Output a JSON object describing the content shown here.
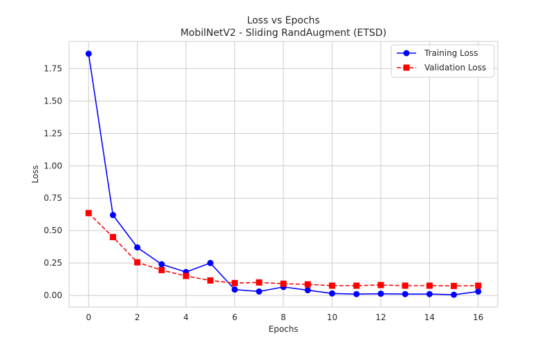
{
  "colors": {
    "training": "#0000ff",
    "validation": "#ff0000",
    "grid": "#cccccc",
    "axes": "#cccccc",
    "background": "#ffffff"
  },
  "legend": {
    "training_label": "Training Loss",
    "validation_label": "Validation Loss"
  },
  "chart_data": {
    "type": "line",
    "title": "Loss vs Epochs",
    "subtitle": "MobilNetV2 - Sliding RandAugment (ETSD)",
    "xlabel": "Epochs",
    "ylabel": "Loss",
    "xlim": [
      -0.8,
      16.8
    ],
    "ylim": [
      -0.09,
      1.96
    ],
    "xticks": [
      0,
      2,
      4,
      6,
      8,
      10,
      12,
      14,
      16
    ],
    "xtick_labels": [
      "0",
      "2",
      "4",
      "6",
      "8",
      "10",
      "12",
      "14",
      "16"
    ],
    "yticks": [
      0.0,
      0.25,
      0.5,
      0.75,
      1.0,
      1.25,
      1.5,
      1.75
    ],
    "ytick_labels": [
      "0.00",
      "0.25",
      "0.50",
      "0.75",
      "1.00",
      "1.25",
      "1.50",
      "1.75"
    ],
    "grid": true,
    "legend_position": "top-right",
    "x": [
      0,
      1,
      2,
      3,
      4,
      5,
      6,
      7,
      8,
      9,
      10,
      11,
      12,
      13,
      14,
      15,
      16
    ],
    "series": [
      {
        "name": "Training Loss",
        "style": "solid",
        "marker": "circle",
        "color": "#0000ff",
        "values": [
          1.865,
          0.62,
          0.37,
          0.24,
          0.18,
          0.25,
          0.045,
          0.03,
          0.065,
          0.04,
          0.015,
          0.01,
          0.013,
          0.01,
          0.01,
          0.005,
          0.03
        ]
      },
      {
        "name": "Validation Loss",
        "style": "dashed",
        "marker": "square",
        "color": "#ff0000",
        "values": [
          0.635,
          0.45,
          0.255,
          0.195,
          0.15,
          0.115,
          0.095,
          0.1,
          0.09,
          0.085,
          0.075,
          0.075,
          0.08,
          0.075,
          0.075,
          0.073,
          0.075
        ]
      }
    ]
  }
}
